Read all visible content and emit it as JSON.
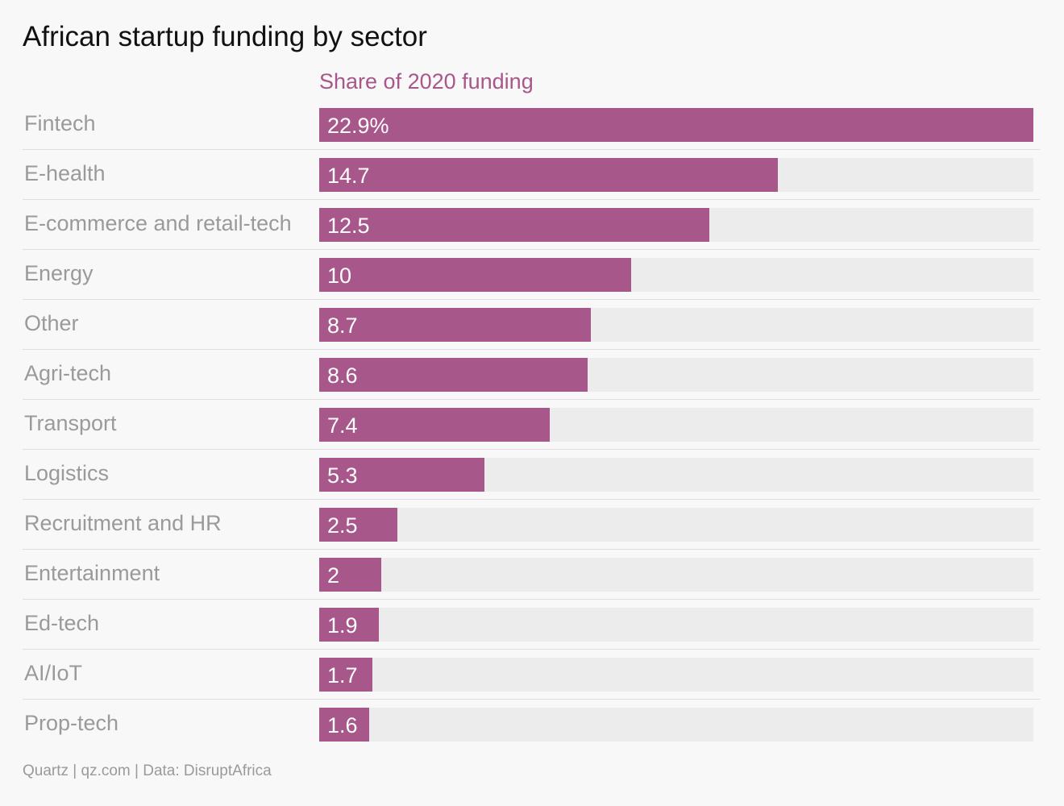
{
  "chart_data": {
    "type": "bar",
    "orientation": "horizontal",
    "title": "African startup funding by sector",
    "series_header": "Share of 2020 funding",
    "categories": [
      "Fintech",
      "E-health",
      "E-commerce and retail-tech",
      "Energy",
      "Other",
      "Agri-tech",
      "Transport",
      "Logistics",
      "Recruitment and HR",
      "Entertainment",
      "Ed-tech",
      "AI/IoT",
      "Prop-tech"
    ],
    "values": [
      22.9,
      14.7,
      12.5,
      10,
      8.7,
      8.6,
      7.4,
      5.3,
      2.5,
      2,
      1.9,
      1.7,
      1.6
    ],
    "value_labels": [
      "22.9%",
      "14.7",
      "12.5",
      "10",
      "8.7",
      "8.6",
      "7.4",
      "5.3",
      "2.5",
      "2",
      "1.9",
      "1.7",
      "1.6"
    ],
    "xlim": [
      0,
      22.9
    ],
    "source": "Quartz | qz.com | Data: DisruptAfrica",
    "colors": {
      "bar": "#a8578a",
      "track": "#ececec",
      "background": "#f8f8f8"
    }
  }
}
